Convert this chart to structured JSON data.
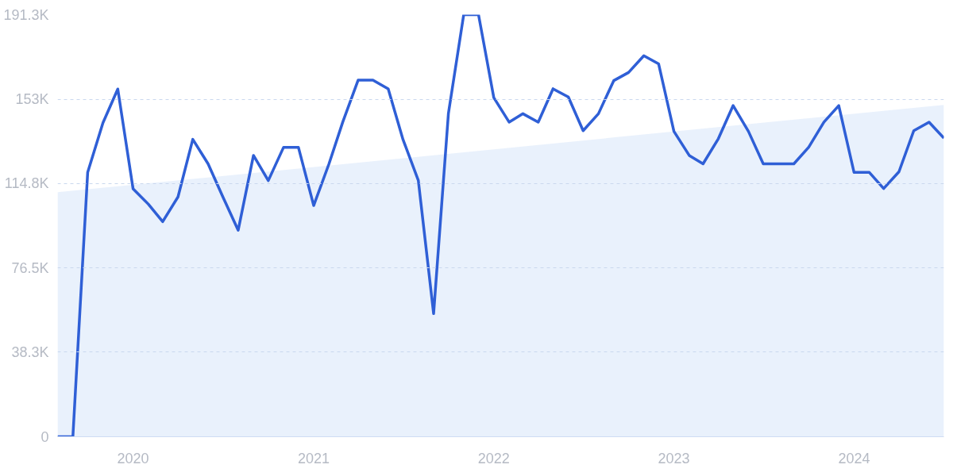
{
  "chart_data": {
    "type": "line",
    "x": [
      "2019-08",
      "2019-09",
      "2019-10",
      "2019-11",
      "2019-12",
      "2020-01",
      "2020-02",
      "2020-03",
      "2020-04",
      "2020-05",
      "2020-06",
      "2020-07",
      "2020-08",
      "2020-09",
      "2020-10",
      "2020-11",
      "2020-12",
      "2021-01",
      "2021-02",
      "2021-03",
      "2021-04",
      "2021-05",
      "2021-06",
      "2021-07",
      "2021-08",
      "2021-09",
      "2021-10",
      "2021-11",
      "2021-12",
      "2022-01",
      "2022-02",
      "2022-03",
      "2022-04",
      "2022-05",
      "2022-06",
      "2022-07",
      "2022-08",
      "2022-09",
      "2022-10",
      "2022-11",
      "2022-12",
      "2023-01",
      "2023-02",
      "2023-03",
      "2023-04",
      "2023-05",
      "2023-06",
      "2023-07",
      "2023-08",
      "2023-09",
      "2023-10",
      "2023-11",
      "2023-12",
      "2024-01",
      "2024-02",
      "2024-03",
      "2024-04",
      "2024-05",
      "2024-06",
      "2024-07"
    ],
    "series": [
      {
        "type": "area",
        "color": "#e1ecfb",
        "x": [
          "2019-08",
          "2024-07"
        ],
        "values": [
          110800,
          150400
        ]
      },
      {
        "color": "#2f5fd6",
        "values": [
          0,
          0,
          119800,
          142300,
          157600,
          112400,
          105400,
          97500,
          108700,
          134800,
          123700,
          108700,
          93600,
          127500,
          116100,
          131200,
          131200,
          104800,
          123700,
          142700,
          161600,
          161600,
          157700,
          134700,
          116200,
          55800,
          146500,
          191300,
          191300,
          153700,
          142600,
          146400,
          142600,
          157700,
          154000,
          138700,
          146400,
          161400,
          165100,
          172700,
          169000,
          138400,
          127500,
          123700,
          135100,
          150100,
          138400,
          123700,
          123700,
          123700,
          131200,
          142600,
          150100,
          119800,
          119800,
          112500,
          120100,
          138700,
          142600,
          135400
        ]
      }
    ],
    "xlim": [
      "2019-08",
      "2024-07"
    ],
    "xticks": [
      {
        "value": "2020-01",
        "label": "2020"
      },
      {
        "value": "2021-01",
        "label": "2021"
      },
      {
        "value": "2022-01",
        "label": "2022"
      },
      {
        "value": "2023-01",
        "label": "2023"
      },
      {
        "value": "2024-01",
        "label": "2024"
      }
    ],
    "ylim": [
      0,
      191300
    ],
    "yticks": [
      0,
      {
        "value": 38300,
        "label": "38.3K"
      },
      {
        "value": 76500,
        "label": "76.5K"
      },
      {
        "value": 114800,
        "label": "114.8K"
      },
      {
        "value": 153000,
        "label": "153K"
      },
      {
        "value": 191300,
        "label": "191.3K"
      }
    ],
    "grid": "y"
  }
}
